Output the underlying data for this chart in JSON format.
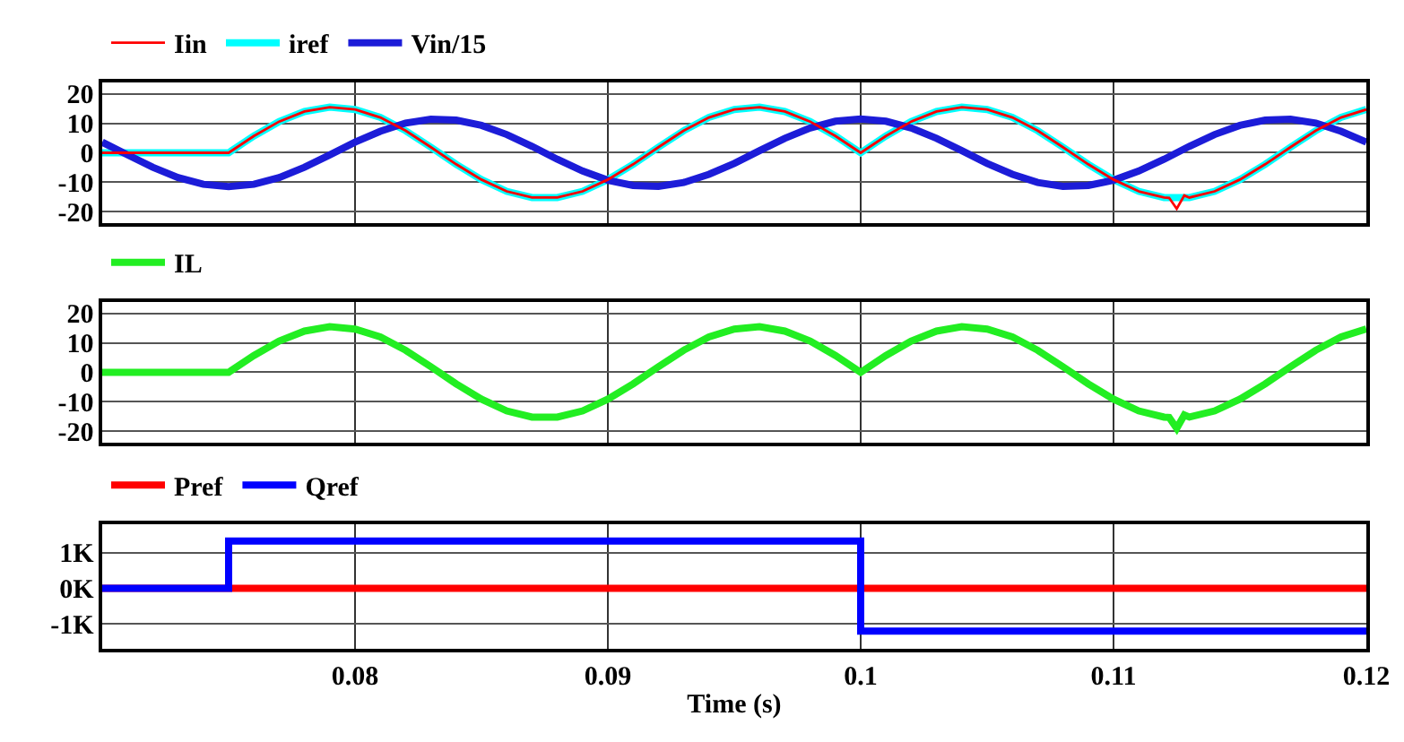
{
  "chart_data": [
    {
      "type": "line",
      "x": [
        0.07,
        0.071,
        0.072,
        0.073,
        0.074,
        0.075,
        0.076,
        0.077,
        0.078,
        0.079,
        0.08,
        0.081,
        0.082,
        0.083,
        0.084,
        0.085,
        0.086,
        0.087,
        0.088,
        0.089,
        0.09,
        0.091,
        0.092,
        0.093,
        0.094,
        0.095,
        0.096,
        0.097,
        0.098,
        0.099,
        0.1,
        0.101,
        0.102,
        0.103,
        0.104,
        0.105,
        0.106,
        0.107,
        0.108,
        0.109,
        0.11,
        0.111,
        0.112,
        0.113,
        0.114,
        0.115,
        0.116,
        0.117,
        0.118,
        0.119,
        0.12
      ],
      "xlim": [
        0.07,
        0.12
      ],
      "xticks": [
        0.08,
        0.09,
        0.1,
        0.11,
        0.12
      ],
      "ylim": [
        -24,
        24
      ],
      "yticks": [
        -20,
        -10,
        0,
        10,
        20
      ],
      "grid": true,
      "legend": "top left",
      "tick_labels": "y",
      "line_style": "solid",
      "marker": "none",
      "series": [
        {
          "name": "Iin",
          "color": "#ff0000",
          "x": [
            0.07,
            0.071,
            0.072,
            0.073,
            0.074,
            0.075,
            0.076,
            0.077,
            0.078,
            0.079,
            0.08,
            0.081,
            0.082,
            0.083,
            0.084,
            0.085,
            0.086,
            0.087,
            0.088,
            0.089,
            0.09,
            0.091,
            0.092,
            0.093,
            0.094,
            0.095,
            0.096,
            0.097,
            0.098,
            0.099,
            0.1,
            0.101,
            0.102,
            0.103,
            0.104,
            0.105,
            0.106,
            0.107,
            0.108,
            0.109,
            0.11,
            0.111,
            0.112,
            0.1122,
            0.1125,
            0.1128,
            0.113,
            0.114,
            0.115,
            0.116,
            0.117,
            0.118,
            0.119,
            0.12
          ],
          "values": [
            0,
            0,
            0,
            0,
            0,
            0,
            5.7,
            10.6,
            14.0,
            15.5,
            14.7,
            12.0,
            7.5,
            1.9,
            -3.9,
            -9.1,
            -13.1,
            -15.2,
            -15.2,
            -13.1,
            -9.1,
            -3.9,
            1.9,
            7.5,
            12.0,
            14.7,
            15.5,
            14.0,
            10.6,
            5.7,
            0,
            5.7,
            10.6,
            14.0,
            15.5,
            14.7,
            12.0,
            7.5,
            1.9,
            -3.9,
            -9.1,
            -13.1,
            -15.2,
            -15.3,
            -19,
            -14.5,
            -15.2,
            -13.1,
            -9.1,
            -3.9,
            1.9,
            7.5,
            12.0,
            14.7
          ]
        },
        {
          "name": "iref",
          "color": "#00ffff",
          "values": [
            0,
            0,
            0,
            0,
            0,
            0,
            5.7,
            10.6,
            14.0,
            15.5,
            14.7,
            12.0,
            7.5,
            1.9,
            -3.9,
            -9.1,
            -13.1,
            -15.2,
            -15.2,
            -13.1,
            -9.1,
            -3.9,
            1.9,
            7.5,
            12.0,
            14.7,
            15.5,
            14.0,
            10.6,
            5.7,
            0,
            5.7,
            10.6,
            14.0,
            15.5,
            14.7,
            12.0,
            7.5,
            1.9,
            -3.9,
            -9.1,
            -13.1,
            -15.2,
            -15.2,
            -13.1,
            -9.1,
            -3.9,
            1.9,
            7.5,
            12.0,
            14.7
          ]
        },
        {
          "name": "Vin/15",
          "color": "#1c1cd8",
          "values": [
            3.6,
            -0.7,
            -4.9,
            -8.4,
            -10.7,
            -11.5,
            -10.7,
            -8.4,
            -4.9,
            -0.7,
            3.6,
            7.3,
            10.1,
            11.4,
            11.1,
            9.3,
            6.2,
            2.2,
            -2.2,
            -6.2,
            -9.3,
            -11.1,
            -11.4,
            -10.1,
            -7.3,
            -3.6,
            0.7,
            4.9,
            8.4,
            10.7,
            11.5,
            10.7,
            8.4,
            4.9,
            0.7,
            -3.6,
            -7.3,
            -10.1,
            -11.4,
            -11.1,
            -9.3,
            -6.2,
            -2.2,
            2.2,
            6.2,
            9.3,
            11.1,
            11.4,
            10.1,
            7.3,
            3.6
          ]
        }
      ]
    },
    {
      "type": "line",
      "xlim": [
        0.07,
        0.12
      ],
      "xticks": [
        0.08,
        0.09,
        0.1,
        0.11,
        0.12
      ],
      "ylim": [
        -24,
        24
      ],
      "yticks": [
        -20,
        -10,
        0,
        10,
        20
      ],
      "grid": true,
      "legend": "top left",
      "tick_labels": "y",
      "line_style": "solid",
      "marker": "none",
      "series": [
        {
          "name": "IL",
          "color": "#22ee22",
          "x": [
            0.07,
            0.071,
            0.072,
            0.073,
            0.074,
            0.075,
            0.076,
            0.077,
            0.078,
            0.079,
            0.08,
            0.081,
            0.082,
            0.083,
            0.084,
            0.085,
            0.086,
            0.087,
            0.088,
            0.089,
            0.09,
            0.091,
            0.092,
            0.093,
            0.094,
            0.095,
            0.096,
            0.097,
            0.098,
            0.099,
            0.1,
            0.101,
            0.102,
            0.103,
            0.104,
            0.105,
            0.106,
            0.107,
            0.108,
            0.109,
            0.11,
            0.111,
            0.112,
            0.1122,
            0.1125,
            0.1128,
            0.113,
            0.114,
            0.115,
            0.116,
            0.117,
            0.118,
            0.119,
            0.12
          ],
          "values": [
            0,
            0,
            0,
            0,
            0,
            0,
            5.7,
            10.6,
            14.0,
            15.5,
            14.7,
            12.0,
            7.5,
            1.9,
            -3.9,
            -9.1,
            -13.1,
            -15.2,
            -15.2,
            -13.1,
            -9.1,
            -3.9,
            1.9,
            7.5,
            12.0,
            14.7,
            15.5,
            14.0,
            10.6,
            5.7,
            0,
            5.7,
            10.6,
            14.0,
            15.5,
            14.7,
            12.0,
            7.5,
            1.9,
            -3.9,
            -9.1,
            -13.1,
            -15.2,
            -15.3,
            -19,
            -14.5,
            -15.2,
            -13.1,
            -9.1,
            -3.9,
            1.9,
            7.5,
            12.0,
            14.7
          ]
        }
      ]
    },
    {
      "type": "step",
      "xlim": [
        0.07,
        0.12
      ],
      "xticks": [
        0.08,
        0.09,
        0.1,
        0.11,
        0.12
      ],
      "xlabel": "Time (s)",
      "ylim": [
        -1700,
        1800
      ],
      "yticks": [
        {
          "value": -1000,
          "label": "-1K"
        },
        {
          "value": 0,
          "label": "0K"
        },
        {
          "value": 1000,
          "label": "1K"
        }
      ],
      "grid": true,
      "legend": "top left",
      "line_style": "solid",
      "marker": "none",
      "series": [
        {
          "name": "Pref",
          "color": "#ff0000",
          "x": [
            0.07,
            0.12
          ],
          "values": [
            0,
            0
          ]
        },
        {
          "name": "Qref",
          "color": "#0000ff",
          "x": [
            0.07,
            0.075,
            0.1,
            0.12
          ],
          "values": [
            0,
            1330,
            -1200,
            -1200
          ]
        }
      ]
    }
  ]
}
